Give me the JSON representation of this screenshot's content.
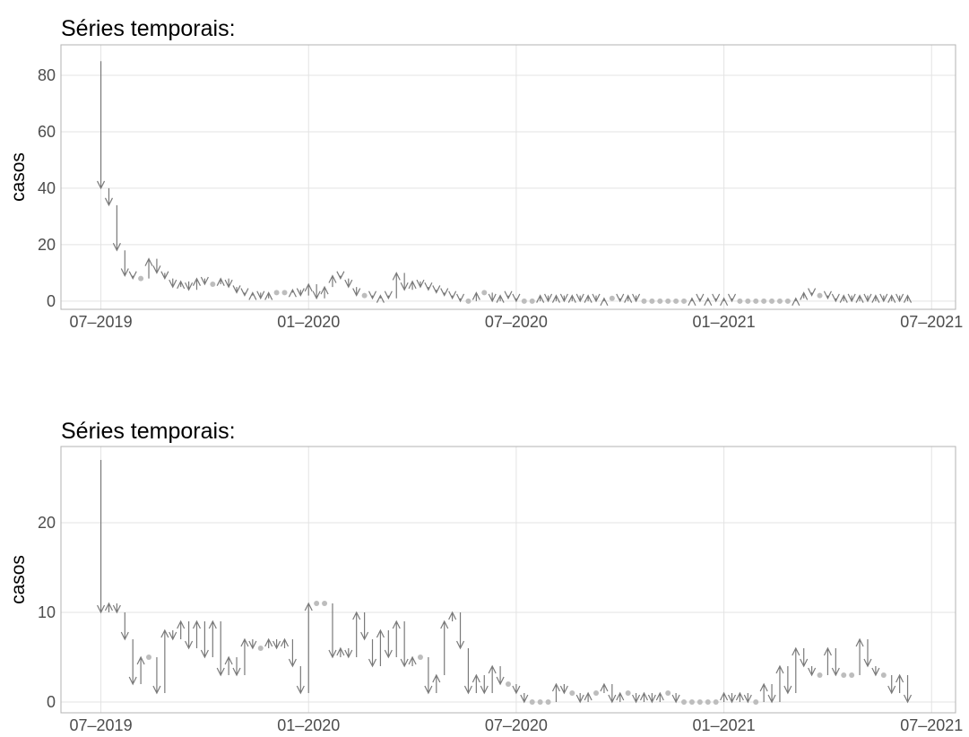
{
  "chart_data": [
    {
      "type": "arrow-change",
      "title": "Séries temporais:",
      "y_label": "casos",
      "arrow_color": "#7a7a7a",
      "flat_color": "#bdbdbd",
      "grid": true,
      "x": [
        0,
        1,
        2,
        3,
        4,
        5,
        6,
        7,
        8,
        9,
        10,
        11,
        12,
        13,
        14,
        15,
        16,
        17,
        18,
        19,
        20,
        21,
        22,
        23,
        24,
        25,
        26,
        27,
        28,
        29,
        30,
        31,
        32,
        33,
        34,
        35,
        36,
        37,
        38,
        39,
        40,
        41,
        42,
        43,
        44,
        45,
        46,
        47,
        48,
        49,
        50,
        51,
        52,
        53,
        54,
        55,
        56,
        57,
        58,
        59,
        60,
        61,
        62,
        63,
        64,
        65,
        66,
        67,
        68,
        69,
        70,
        71,
        72,
        73,
        74,
        75,
        76,
        77,
        78,
        79,
        80,
        81,
        82,
        83,
        84,
        85,
        86,
        87,
        88,
        89,
        90,
        91,
        92,
        93,
        94,
        95,
        96,
        97,
        98,
        99,
        100,
        101,
        102
      ],
      "values": [
        85,
        40,
        34,
        18,
        9,
        8,
        8,
        15,
        10,
        8,
        5,
        7,
        4,
        8,
        6,
        6,
        8,
        5,
        3,
        2,
        3,
        1,
        3,
        3,
        3,
        4,
        2,
        6,
        1,
        5,
        9,
        8,
        5,
        2,
        2,
        1,
        2,
        1,
        10,
        4,
        7,
        5,
        4,
        3,
        2,
        1,
        0,
        0,
        3,
        3,
        0,
        2,
        1,
        0,
        0,
        0,
        2,
        0,
        2,
        0,
        2,
        0,
        2,
        0,
        1,
        1,
        0,
        2,
        0,
        0,
        0,
        0,
        0,
        0,
        0,
        1,
        0,
        1,
        0,
        1,
        0,
        0,
        0,
        0,
        0,
        0,
        0,
        0,
        1,
        3,
        2,
        2,
        1,
        0,
        2,
        0,
        2,
        0,
        2,
        0,
        2,
        0,
        2
      ],
      "xlim": [
        -5,
        107
      ],
      "xticks": [
        {
          "value": 0,
          "label": "07–2019"
        },
        {
          "value": 26,
          "label": "01–2020"
        },
        {
          "value": 52,
          "label": "07–2020"
        },
        {
          "value": 78,
          "label": "01–2021"
        },
        {
          "value": 104,
          "label": "07–2021"
        }
      ],
      "ylim": [
        -2.9,
        90.8
      ],
      "yticks": [
        0,
        20,
        40,
        60,
        80
      ]
    },
    {
      "type": "arrow-change",
      "title": "Séries temporais:",
      "y_label": "casos",
      "arrow_color": "#7a7a7a",
      "flat_color": "#bdbdbd",
      "grid": true,
      "x": [
        0,
        1,
        2,
        3,
        4,
        5,
        6,
        7,
        8,
        9,
        10,
        11,
        12,
        13,
        14,
        15,
        16,
        17,
        18,
        19,
        20,
        21,
        22,
        23,
        24,
        25,
        26,
        27,
        28,
        29,
        30,
        31,
        32,
        33,
        34,
        35,
        36,
        37,
        38,
        39,
        40,
        41,
        42,
        43,
        44,
        45,
        46,
        47,
        48,
        49,
        50,
        51,
        52,
        53,
        54,
        55,
        56,
        57,
        58,
        59,
        60,
        61,
        62,
        63,
        64,
        65,
        66,
        67,
        68,
        69,
        70,
        71,
        72,
        73,
        74,
        75,
        76,
        77,
        78,
        79,
        80,
        81,
        82,
        83,
        84,
        85,
        86,
        87,
        88,
        89,
        90,
        91,
        92,
        93,
        94,
        95,
        96,
        97,
        98,
        99,
        100,
        101,
        102
      ],
      "values": [
        27,
        10,
        11,
        10,
        7,
        2,
        5,
        5,
        1,
        8,
        7,
        9,
        6,
        9,
        5,
        9,
        3,
        5,
        3,
        7,
        6,
        6,
        7,
        6,
        7,
        4,
        1,
        11,
        11,
        11,
        5,
        6,
        5,
        10,
        7,
        4,
        8,
        5,
        9,
        4,
        5,
        5,
        1,
        3,
        9,
        10,
        6,
        1,
        3,
        1,
        4,
        2,
        2,
        1,
        0,
        0,
        0,
        0,
        2,
        1,
        1,
        0,
        1,
        1,
        2,
        0,
        1,
        1,
        0,
        1,
        0,
        1,
        1,
        0,
        0,
        0,
        0,
        0,
        0,
        1,
        0,
        1,
        0,
        0,
        2,
        0,
        4,
        1,
        6,
        4,
        3,
        3,
        6,
        3,
        3,
        3,
        7,
        4,
        3,
        3,
        1,
        3,
        0
      ],
      "xlim": [
        -5,
        107
      ],
      "xticks": [
        {
          "value": 0,
          "label": "07–2019"
        },
        {
          "value": 26,
          "label": "01–2020"
        },
        {
          "value": 52,
          "label": "07–2020"
        },
        {
          "value": 78,
          "label": "01–2021"
        },
        {
          "value": 104,
          "label": "07–2021"
        }
      ],
      "ylim": [
        -1.2,
        28.5
      ],
      "yticks": [
        0,
        10,
        20
      ]
    }
  ]
}
